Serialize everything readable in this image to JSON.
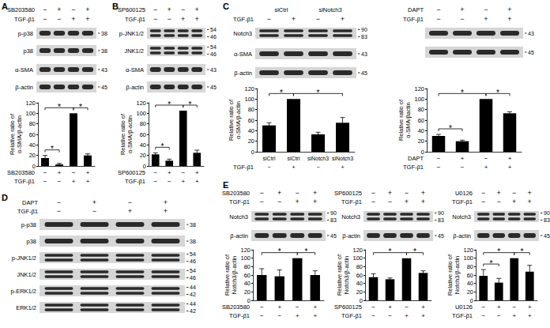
{
  "chart_data": [
    {
      "type": "bar",
      "y_label": "Relative ratio of\nα-SMA/β-actin",
      "categories": [
        "−\n−",
        "+\n−",
        "−\n+",
        "+\n+"
      ],
      "row_labels": [
        "SB203580",
        "TGF-β1"
      ],
      "values": [
        15,
        3,
        100,
        20
      ],
      "errors": [
        5,
        2,
        0,
        3
      ],
      "color": "#000000",
      "ylim": [
        0,
        120
      ],
      "yticks": [
        0,
        20,
        40,
        60,
        80,
        100,
        120
      ],
      "brackets": [
        {
          "from": 0,
          "to": 1,
          "label": "*"
        },
        {
          "from": 0,
          "to": 2,
          "label": "*"
        },
        {
          "from": 2,
          "to": 3,
          "label": "*"
        }
      ]
    },
    {
      "type": "bar",
      "y_label": "Relative ratio of\nα-SMA/β-actin",
      "categories": [
        "−\n−",
        "+\n−",
        "−\n+",
        "+\n+"
      ],
      "row_labels": [
        "SP600125",
        "TGF-β1"
      ],
      "values": [
        22,
        10,
        105,
        25
      ],
      "errors": [
        3,
        3,
        0,
        5
      ],
      "color": "#000000",
      "ylim": [
        0,
        120
      ],
      "yticks": [
        0,
        20,
        40,
        60,
        80,
        100,
        120
      ],
      "brackets": [
        {
          "from": 0,
          "to": 1,
          "label": "*"
        },
        {
          "from": 0,
          "to": 2,
          "label": "*"
        },
        {
          "from": 2,
          "to": 3,
          "label": "*"
        }
      ]
    },
    {
      "type": "bar",
      "y_label": "Relative ratio of\nα-SMA/β-actin",
      "categories": [
        "siCtrl\n−",
        "siCtrl\n+",
        "siNotch3\n−",
        "siNotch3\n+"
      ],
      "row_labels": [
        null,
        "TGF-β1"
      ],
      "values": [
        50,
        100,
        33,
        55
      ],
      "errors": [
        5,
        0,
        4,
        10
      ],
      "color": "#000000",
      "ylim": [
        0,
        120
      ],
      "yticks": [
        0,
        20,
        40,
        60,
        80,
        100,
        120
      ],
      "brackets": [
        {
          "from": 0,
          "to": 1,
          "label": "*"
        },
        {
          "from": 1,
          "to": 3,
          "label": "*"
        }
      ]
    },
    {
      "type": "bar",
      "y_label": "Relative ratio of\nα-SMA/βactin",
      "categories": [
        "−\n−",
        "+\n−",
        "−\n+",
        "+\n+"
      ],
      "row_labels": [
        "DAPT",
        "TGF-β1"
      ],
      "values": [
        30,
        20,
        100,
        73
      ],
      "errors": [
        3,
        2,
        0,
        3
      ],
      "color": "#000000",
      "ylim": [
        0,
        120
      ],
      "yticks": [
        0,
        20,
        40,
        60,
        80,
        100,
        120
      ],
      "brackets": [
        {
          "from": 0,
          "to": 1,
          "label": "*"
        },
        {
          "from": 0,
          "to": 2,
          "label": "*"
        },
        {
          "from": 2,
          "to": 3,
          "label": "*"
        }
      ]
    },
    {
      "type": "bar",
      "y_label": "Relative ratio of\nNotch3/β-actin",
      "categories": [
        "−\n−",
        "+\n−",
        "−\n+",
        "+\n+"
      ],
      "row_labels": [
        "SB203580",
        "TGF-β1"
      ],
      "values": [
        60,
        57,
        100,
        60
      ],
      "errors": [
        15,
        15,
        0,
        10
      ],
      "color": "#000000",
      "ylim": [
        0,
        120
      ],
      "yticks": [
        0,
        20,
        40,
        60,
        80,
        100,
        120
      ],
      "brackets": [
        {
          "from": 0,
          "to": 2,
          "label": "*"
        },
        {
          "from": 2,
          "to": 3,
          "label": "*"
        }
      ]
    },
    {
      "type": "bar",
      "y_label": "Relative ratio of\nNotch3/β-actin",
      "categories": [
        "−\n−",
        "+\n−",
        "−\n+",
        "+\n+"
      ],
      "row_labels": [
        "SP600125",
        "TGF-β1"
      ],
      "values": [
        55,
        50,
        100,
        65
      ],
      "errors": [
        8,
        3,
        0,
        5
      ],
      "color": "#000000",
      "ylim": [
        0,
        120
      ],
      "yticks": [
        0,
        20,
        40,
        60,
        80,
        100,
        120
      ],
      "brackets": [
        {
          "from": 0,
          "to": 2,
          "label": "*"
        },
        {
          "from": 2,
          "to": 3,
          "label": "*"
        }
      ]
    },
    {
      "type": "bar",
      "y_label": "Relative ratio of\nNotch3/β-actin",
      "categories": [
        "−\n−",
        "+\n−",
        "−\n+",
        "+\n+"
      ],
      "row_labels": [
        "U0126",
        "TGF-β1"
      ],
      "values": [
        58,
        42,
        100,
        68
      ],
      "errors": [
        15,
        10,
        0,
        15
      ],
      "color": "#000000",
      "ylim": [
        0,
        120
      ],
      "yticks": [
        0,
        20,
        40,
        60,
        80,
        100,
        120
      ],
      "brackets": [
        {
          "from": 0,
          "to": 1,
          "label": "*"
        },
        {
          "from": 0,
          "to": 2,
          "label": "*"
        },
        {
          "from": 2,
          "to": 3,
          "label": "*"
        }
      ]
    }
  ],
  "panels": [
    {
      "letter": "A",
      "sections": [
        {
          "chart": 0,
          "header": [
            {
              "label": "SB203580",
              "cells": [
                "−",
                "+",
                "−",
                "+"
              ]
            },
            {
              "label": "TGF-β1",
              "cells": [
                "−",
                "−",
                "+",
                "+"
              ]
            }
          ],
          "blots": [
            {
              "label": "p-p38",
              "markers": [
                38
              ]
            },
            {
              "label": "p38",
              "markers": [
                38
              ]
            },
            {
              "label": "α-SMA",
              "markers": [
                43
              ]
            },
            {
              "label": "β-actin",
              "markers": [
                45
              ]
            }
          ]
        }
      ]
    },
    {
      "letter": "B",
      "sections": [
        {
          "chart": 1,
          "header": [
            {
              "label": "SP600125",
              "cells": [
                "−",
                "+",
                "−",
                "+"
              ]
            },
            {
              "label": "TGF-β1",
              "cells": [
                "−",
                "−",
                "+",
                "+"
              ]
            }
          ],
          "blots": [
            {
              "label": "p-JNK1/2",
              "markers": [
                54,
                46
              ]
            },
            {
              "label": "JNK1/2",
              "markers": [
                54,
                46
              ]
            },
            {
              "label": "α-SMA",
              "markers": [
                43
              ]
            },
            {
              "label": "β-actin",
              "markers": [
                45
              ]
            }
          ]
        }
      ]
    },
    {
      "letter": "C",
      "sections": [
        {
          "chart": 2,
          "header": [
            {
              "label": null,
              "cells": [
                "siCtrl",
                "siNotch3"
              ]
            },
            {
              "label": "TGF-β1",
              "cells": [
                "−",
                "+",
                "−",
                "+"
              ]
            }
          ],
          "blots": [
            {
              "label": "Notch3",
              "markers": [
                90,
                83
              ]
            },
            {
              "label": "α-SMA",
              "markers": [
                43
              ]
            },
            {
              "label": "β-actin",
              "markers": [
                45
              ]
            }
          ]
        },
        {
          "chart": 3,
          "header": [
            {
              "label": "DAPT",
              "cells": [
                "−",
                "+",
                "−",
                "+"
              ]
            },
            {
              "label": "TGF-β1",
              "cells": [
                "−",
                "−",
                "+",
                "+"
              ]
            }
          ],
          "blots": [
            {
              "markers": [
                43
              ]
            },
            {
              "markers": [
                45
              ]
            }
          ]
        }
      ]
    },
    {
      "letter": "D",
      "sections": [
        {
          "header": [
            {
              "label": "DAPT",
              "cells": [
                "−",
                "+",
                "−",
                "+"
              ]
            },
            {
              "label": "TGF-β1",
              "cells": [
                "−",
                "−",
                "+",
                "+"
              ]
            }
          ],
          "blots": [
            {
              "label": "p-p38",
              "markers": [
                38
              ]
            },
            {
              "label": "p38",
              "markers": [
                38
              ]
            },
            {
              "label": "p-JNK1/2",
              "markers": [
                54,
                46
              ]
            },
            {
              "label": "JNK1/2",
              "markers": [
                54,
                46
              ]
            },
            {
              "label": "p-ERK1/2",
              "markers": [
                44,
                42
              ]
            },
            {
              "label": "ERK1/2",
              "markers": [
                44,
                42
              ]
            }
          ]
        }
      ]
    },
    {
      "letter": "E",
      "sections": [
        {
          "chart": 4,
          "header": [
            {
              "label": "SB203580",
              "cells": [
                "−",
                "+",
                "−",
                "+"
              ]
            },
            {
              "label": "TGF-β1",
              "cells": [
                "−",
                "−",
                "+",
                "+"
              ]
            }
          ],
          "blots": [
            {
              "label": "Notch3",
              "markers": [
                90,
                83
              ]
            },
            {
              "label": "β-actin",
              "markers": [
                45
              ]
            }
          ]
        },
        {
          "chart": 5,
          "header": [
            {
              "label": "SP600125",
              "cells": [
                "−",
                "+",
                "−",
                "+"
              ]
            },
            {
              "label": "TGF-β1",
              "cells": [
                "−",
                "−",
                "+",
                "+"
              ]
            }
          ],
          "blots": [
            {
              "label": "Notch3",
              "markers": [
                90,
                83
              ]
            },
            {
              "label": "β-actin",
              "markers": [
                45
              ]
            }
          ]
        },
        {
          "chart": 6,
          "header": [
            {
              "label": "U0126",
              "cells": [
                "−",
                "+",
                "−",
                "+"
              ]
            },
            {
              "label": "TGF-β1",
              "cells": [
                "−",
                "−",
                "+",
                "+"
              ]
            }
          ],
          "blots": [
            {
              "label": "Notch3",
              "markers": [
                90,
                83
              ]
            },
            {
              "label": "β-actin",
              "markers": [
                45
              ]
            }
          ]
        }
      ]
    }
  ]
}
